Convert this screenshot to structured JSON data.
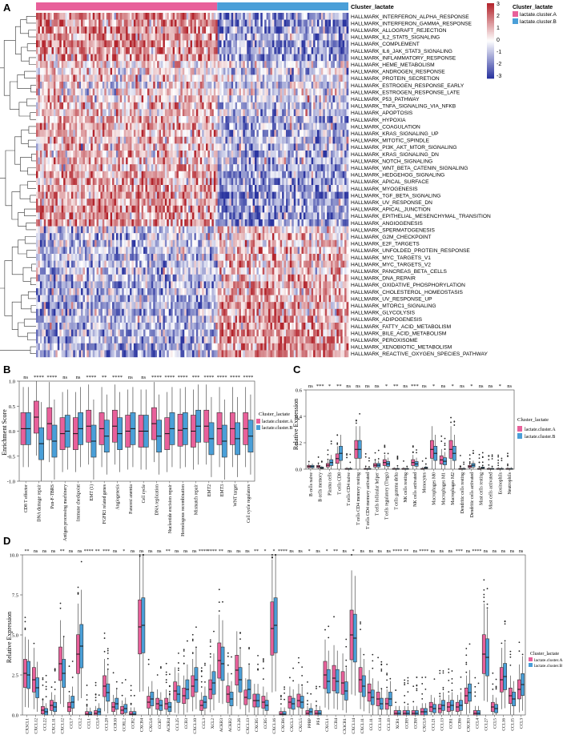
{
  "colors": {
    "clusterA": "#e8609a",
    "clusterB": "#4a9fd8",
    "hm_low": "#2b35a0",
    "hm_mid": "#ffffff",
    "hm_high": "#b3242c"
  },
  "panels": {
    "a": "A",
    "b": "B",
    "c": "C",
    "d": "D"
  },
  "chart_data": [
    {
      "type": "heatmap",
      "panel": "A",
      "annotation_title": "Cluster_lactate",
      "legend_title": "Cluster_lactate",
      "legend_entries": [
        "lactate.cluster.A",
        "lactate.cluster.B"
      ],
      "color_scale": {
        "ticks": [
          "3",
          "2",
          "1",
          "0",
          "-1",
          "-2",
          "-3"
        ],
        "range": [
          -3,
          3
        ]
      },
      "columns_cluster_fraction": {
        "lactate.cluster.A": 0.58,
        "lactate.cluster.B": 0.42
      },
      "rows": [
        "HALLMARK_INTERFERON_ALPHA_RESPONSE",
        "HALLMARK_INTERFERON_GAMMA_RESPONSE",
        "HALLMARK_ALLOGRAFT_REJECTION",
        "HALLMARK_IL2_STAT5_SIGNALING",
        "HALLMARK_COMPLEMENT",
        "HALLMARK_IL6_JAK_STAT3_SIGNALING",
        "HALLMARK_INFLAMMATORY_RESPONSE",
        "HALLMARK_HEME_METABOLISM",
        "HALLMARK_ANDROGEN_RESPONSE",
        "HALLMARK_PROTEIN_SECRETION",
        "HALLMARK_ESTROGEN_RESPONSE_EARLY",
        "HALLMARK_ESTROGEN_RESPONSE_LATE",
        "HALLMARK_P53_PATHWAY",
        "HALLMARK_TNFA_SIGNALING_VIA_NFKB",
        "HALLMARK_APOPTOSIS",
        "HALLMARK_HYPOXIA",
        "HALLMARK_COAGULATION",
        "HALLMARK_KRAS_SIGNALING_UP",
        "HALLMARK_MITOTIC_SPINDLE",
        "HALLMARK_PI3K_AKT_MTOR_SIGNALING",
        "HALLMARK_KRAS_SIGNALING_DN",
        "HALLMARK_NOTCH_SIGNALING",
        "HALLMARK_WNT_BETA_CATENIN_SIGNALING",
        "HALLMARK_HEDGEHOG_SIGNALING",
        "HALLMARK_APICAL_SURFACE",
        "HALLMARK_MYOGENESIS",
        "HALLMARK_TGF_BETA_SIGNALING",
        "HALLMARK_UV_RESPONSE_DN",
        "HALLMARK_APICAL_JUNCTION",
        "HALLMARK_EPITHELIAL_MESENCHYMAL_TRANSITION",
        "HALLMARK_ANGIOGENESIS",
        "HALLMARK_SPERMATOGENESIS",
        "HALLMARK_G2M_CHECKPOINT",
        "HALLMARK_E2F_TARGETS",
        "HALLMARK_UNFOLDED_PROTEIN_RESPONSE",
        "HALLMARK_MYC_TARGETS_V1",
        "HALLMARK_MYC_TARGETS_V2",
        "HALLMARK_PANCREAS_BETA_CELLS",
        "HALLMARK_DNA_REPAIR",
        "HALLMARK_OXIDATIVE_PHOSPHORYLATION",
        "HALLMARK_CHOLESTEROL_HOMEOSTASIS",
        "HALLMARK_UV_RESPONSE_UP",
        "HALLMARK_MTORC1_SIGNALING",
        "HALLMARK_GLYCOLYSIS",
        "HALLMARK_ADIPOGENESIS",
        "HALLMARK_FATTY_ACID_METABOLISM",
        "HALLMARK_BILE_ACID_METABOLISM",
        "HALLMARK_PEROXISOME",
        "HALLMARK_XENOBIOTIC_METABOLISM",
        "HALLMARK_REACTIVE_OXYGEN_SPECIES_PATHWAY"
      ],
      "row_mean_A": [
        0.4,
        0.4,
        0.4,
        0.35,
        0.4,
        0.35,
        0.35,
        0.1,
        0.1,
        0.15,
        0.1,
        0.1,
        0.15,
        0.25,
        0.2,
        0.25,
        0.25,
        0.25,
        0.2,
        0.2,
        0.2,
        0.25,
        0.25,
        0.3,
        0.3,
        0.35,
        0.35,
        0.35,
        0.35,
        0.35,
        0.35,
        -0.15,
        -0.2,
        -0.2,
        -0.2,
        -0.25,
        -0.25,
        -0.2,
        -0.25,
        -0.3,
        -0.25,
        -0.25,
        -0.3,
        -0.25,
        -0.3,
        -0.3,
        -0.3,
        -0.3,
        -0.3,
        -0.3
      ],
      "row_mean_B": [
        -0.4,
        -0.4,
        -0.4,
        -0.35,
        -0.4,
        -0.35,
        -0.35,
        -0.1,
        -0.1,
        -0.15,
        -0.1,
        -0.1,
        -0.15,
        -0.25,
        -0.2,
        -0.25,
        -0.25,
        -0.25,
        -0.25,
        -0.3,
        -0.3,
        -0.3,
        -0.3,
        -0.35,
        -0.35,
        -0.35,
        -0.4,
        -0.4,
        -0.4,
        -0.4,
        -0.4,
        0.15,
        0.2,
        0.2,
        0.2,
        0.25,
        0.25,
        0.2,
        0.25,
        0.3,
        0.3,
        0.3,
        0.35,
        0.3,
        0.35,
        0.4,
        0.4,
        0.4,
        0.4,
        0.4
      ]
    },
    {
      "type": "boxplot",
      "panel": "B",
      "ylabel": "Enrichment Score",
      "ylim": [
        -1.0,
        1.0
      ],
      "yticks": [
        "1.0",
        "0.5",
        "0.0",
        "-0.5",
        "-1.0"
      ],
      "legend_title": "Cluster_lactate",
      "legend_entries": [
        "lactate.cluster.A",
        "lactate.cluster.B"
      ],
      "categories": [
        "CD8 T effector",
        "DNA damage repair",
        "Pan-F-TBRS",
        "Antigen processing machinery",
        "Immune checkpoint",
        "EMT (1)",
        "FGFR3 related genes",
        "Angiogenesis",
        "Fanconi anemia",
        "Cell cycle",
        "DNA replication",
        "Nucleotide excision repair",
        "Homologous recombination",
        "Mismatch repair",
        "EMT2",
        "EMT3",
        "WNT target",
        "Cell cycle regulators"
      ],
      "significance": [
        "ns",
        "****",
        "****",
        "ns",
        "ns",
        "****",
        "**",
        "****",
        "ns",
        "ns",
        "****",
        "****",
        "****",
        "***",
        "****",
        "****",
        "****",
        "****"
      ],
      "series": [
        {
          "name": "lactate.cluster.A",
          "median": [
            0.05,
            0.28,
            0.15,
            -0.05,
            -0.05,
            0.1,
            0.05,
            0.1,
            0.0,
            0.0,
            0.15,
            -0.05,
            0.02,
            0.0,
            0.1,
            0.05,
            0.05,
            0.05
          ]
        },
        {
          "name": "lactate.cluster.B",
          "median": [
            0.05,
            -0.25,
            -0.2,
            0.0,
            0.05,
            -0.2,
            -0.1,
            -0.05,
            0.05,
            0.0,
            -0.1,
            0.05,
            0.05,
            0.1,
            -0.15,
            -0.2,
            -0.15,
            -0.1
          ]
        }
      ]
    },
    {
      "type": "boxplot",
      "panel": "C",
      "ylabel": "Relative Expression",
      "ylim": [
        0.0,
        0.6
      ],
      "yticks": [
        "0.6",
        "0.4",
        "0.2",
        "0.0"
      ],
      "legend_title": "Cluster_lactate",
      "legend_entries": [
        "lactate.cluster.A",
        "lactate.cluster.B"
      ],
      "categories": [
        "B cells naive",
        "B cells memory",
        "Plasma cells",
        "T cells CD8",
        "T cells CD4 naive",
        "T cells CD4 memory resting",
        "T cells CD4 memory activated",
        "T cells follicular helper",
        "T cells regulatory (Tregs)",
        "T cells gamma delta",
        "NK cells resting",
        "NK cells activated",
        "Monocytes",
        "Macrophages M0",
        "Macrophages M1",
        "Macrophages M2",
        "Dendritic cells resting",
        "Dendritic cells activated",
        "Mast cells resting",
        "Mast cells activated",
        "Eosinophils",
        "Neutrophils"
      ],
      "significance": [
        "ns",
        "***",
        "*",
        "**",
        "ns",
        "ns",
        "ns",
        "ns",
        "*",
        "**",
        "ns",
        "***",
        "ns",
        "*",
        "ns",
        "*",
        "ns",
        "*",
        "ns",
        "ns",
        "*",
        "ns"
      ],
      "series": [
        {
          "name": "lactate.cluster.A",
          "median": [
            0.02,
            0.02,
            0.03,
            0.08,
            0.0,
            0.15,
            0.0,
            0.03,
            0.05,
            0.0,
            0.0,
            0.05,
            0.0,
            0.15,
            0.07,
            0.15,
            0.0,
            0.02,
            0.0,
            0.0,
            0.0,
            0.0
          ]
        },
        {
          "name": "lactate.cluster.B",
          "median": [
            0.02,
            0.01,
            0.05,
            0.12,
            0.0,
            0.15,
            0.0,
            0.03,
            0.04,
            0.0,
            0.0,
            0.04,
            0.01,
            0.12,
            0.06,
            0.12,
            0.0,
            0.03,
            0.01,
            0.0,
            0.0,
            0.0
          ]
        }
      ]
    },
    {
      "type": "boxplot",
      "panel": "D",
      "ylabel": "Relative Expression",
      "ylim": [
        0.0,
        10.0
      ],
      "yticks": [
        "10.0",
        "7.5",
        "5.0",
        "2.5",
        "0.0"
      ],
      "legend_title": "Cluster_lactate",
      "legend_entries": [
        "lactate.cluster.A",
        "lactate.cluster.B"
      ],
      "categories": [
        "CX3CL1",
        "CXCL12",
        "CCL22",
        "CXCL11",
        "CXCL12",
        "CCL7",
        "CCL2",
        "CCL1",
        "CCL8",
        "CCL28",
        "CCR10",
        "CCRL2",
        "CCR2",
        "CXCR4",
        "CXCL6",
        "CCR7",
        "ACKR4",
        "CCL25",
        "CCR3",
        "CXCL10",
        "CCL3",
        "XCL2",
        "ACKR3",
        "ACKR2",
        "CCL26",
        "CXCL13",
        "CXCR5",
        "CCR5",
        "CXCL16",
        "CXCR6",
        "CXCL3",
        "CXCL5",
        "PPBP",
        "PF4",
        "CXCL1",
        "CCR4",
        "CX3CR1",
        "CXCL14",
        "CXCL11",
        "CCL11",
        "CCL14",
        "CCL19",
        "XCR1",
        "CCR9",
        "CCR8",
        "CXCL8",
        "CCL21",
        "CCL13",
        "CCR1",
        "CCR6",
        "CXCR3",
        "CCL4",
        "CCL27",
        "CCL5",
        "CCL16",
        "CCL15",
        "CCL3"
      ],
      "significance": [
        "**",
        "ns",
        "ns",
        "ns",
        "**",
        "ns",
        "ns",
        "****",
        "**",
        "***",
        "ns",
        "*",
        "ns",
        "ns",
        "ns",
        "ns",
        "**",
        "ns",
        "ns",
        "ns",
        "****",
        "****",
        "**",
        "ns",
        "ns",
        "ns",
        "**",
        "*",
        "*",
        "****",
        "ns",
        "ns",
        "*",
        "ns",
        "*",
        "**",
        "ns",
        "*",
        "ns",
        "ns",
        "ns",
        "ns",
        "****",
        "**",
        "ns",
        "****",
        "ns",
        "ns",
        "ns",
        "***",
        "ns",
        "****",
        "ns",
        "ns",
        "ns",
        "ns",
        "ns"
      ],
      "series": [
        {
          "name": "lactate.cluster.A",
          "median": [
            2.6,
            2.2,
            0.3,
            0.6,
            3.2,
            0.5,
            3.8,
            0.05,
            0.1,
            1.8,
            0.5,
            0.3,
            0.05,
            5.5,
            0.8,
            0.7,
            0.7,
            1.5,
            1.2,
            1.8,
            0.6,
            1.6,
            3.4,
            1.3,
            2.8,
            1.1,
            0.9,
            0.8,
            5.4,
            0.05,
            0.8,
            0.9,
            0.1,
            0.1,
            2.5,
            2.3,
            2.0,
            5.0,
            2.2,
            1.4,
            1.0,
            0.7,
            0.1,
            0.1,
            0.1,
            0.2,
            0.5,
            0.4,
            0.5,
            0.5,
            1.2,
            0.1,
            3.8,
            0.5,
            2.2,
            1.2,
            1.6
          ]
        },
        {
          "name": "lactate.cluster.B",
          "median": [
            2.5,
            1.7,
            0.2,
            0.5,
            2.6,
            0.8,
            4.3,
            0.04,
            0.2,
            1.4,
            0.7,
            0.4,
            0.05,
            5.6,
            1.0,
            0.6,
            0.5,
            1.3,
            1.6,
            2.2,
            0.8,
            2.0,
            3.2,
            1.0,
            2.2,
            1.6,
            0.9,
            0.6,
            5.6,
            0.05,
            0.7,
            0.8,
            0.2,
            0.1,
            2.1,
            2.1,
            1.5,
            4.8,
            1.8,
            1.1,
            0.7,
            1.0,
            0.1,
            0.1,
            0.1,
            0.2,
            0.4,
            0.6,
            0.6,
            0.6,
            1.4,
            0.1,
            3.6,
            0.4,
            2.4,
            1.0,
            1.9
          ]
        }
      ]
    }
  ]
}
